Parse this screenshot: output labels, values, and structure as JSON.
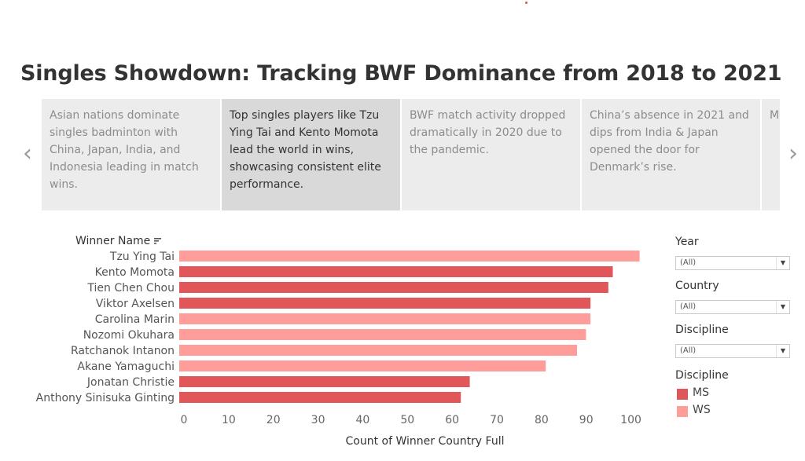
{
  "title": "Singles Showdown: Tracking BWF Dominance from 2018 to 2021",
  "story": {
    "prev_icon": "chevron-left-icon",
    "next_icon": "chevron-right-icon",
    "prev_glyph": "‹",
    "next_glyph": "›",
    "points": [
      {
        "text": "Asian nations dominate singles badminton with China, Japan, India, and Indonesia leading in match wins.",
        "active": false
      },
      {
        "text": "Top singles players like Tzu Ying Tai and Kento Momota lead the world in wins, showcasing consistent elite performance.",
        "active": true
      },
      {
        "text": "BWF match activity dropped dramatically in 2020 due to the pandemic.",
        "active": false
      },
      {
        "text": "China’s absence in 2021 and dips from India & Japan opened the door for Denmark’s rise.",
        "active": false
      },
      {
        "text": "M sl W re",
        "active": false
      }
    ]
  },
  "filters": [
    {
      "title": "Year",
      "value": "(All)"
    },
    {
      "title": "Country",
      "value": "(All)"
    },
    {
      "title": "Discipline",
      "value": "(All)"
    }
  ],
  "legend": {
    "title": "Discipline",
    "items": [
      {
        "label": "MS",
        "color": "#e15759"
      },
      {
        "label": "WS",
        "color": "#ff9d9a"
      }
    ]
  },
  "chart_data": {
    "type": "bar",
    "orientation": "horizontal",
    "row_header": "Winner Name",
    "sort_icon": "sort-descending-icon",
    "categories": [
      "Tzu Ying Tai",
      "Kento Momota",
      "Tien Chen Chou",
      "Viktor Axelsen",
      "Carolina Marin",
      "Nozomi Okuhara",
      "Ratchanok Intanon",
      "Akane Yamaguchi",
      "Jonatan Christie",
      "Anthony Sinisuka Ginting"
    ],
    "values": [
      103,
      97,
      96,
      92,
      92,
      91,
      89,
      82,
      65,
      63
    ],
    "discipline": [
      "WS",
      "MS",
      "MS",
      "MS",
      "WS",
      "WS",
      "WS",
      "WS",
      "MS",
      "MS"
    ],
    "xlabel": "Count of Winner Country Full",
    "xlim": [
      0,
      105
    ],
    "xticks": [
      0,
      10,
      20,
      30,
      40,
      50,
      60,
      70,
      80,
      90,
      100
    ],
    "grid": false,
    "legend_position": "right"
  }
}
